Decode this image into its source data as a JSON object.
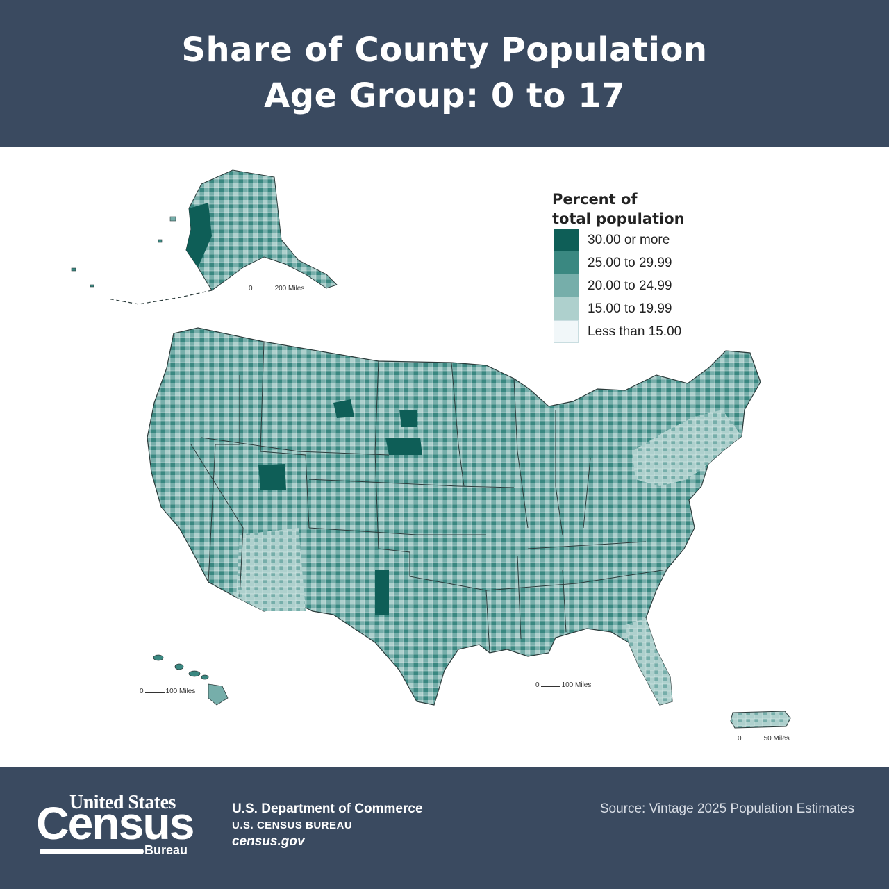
{
  "header": {
    "title_line1": "Share of County Population",
    "title_line2": "Age Group: 0 to 17"
  },
  "legend": {
    "title_line1": "Percent of",
    "title_line2": "total population",
    "items": [
      {
        "label": "30.00 or more",
        "color": "#0e5e57"
      },
      {
        "label": "25.00 to 29.99",
        "color": "#3a8881"
      },
      {
        "label": "20.00 to 24.99",
        "color": "#76aeaa"
      },
      {
        "label": "15.00 to 19.99",
        "color": "#aed0cd"
      },
      {
        "label": "Less than 15.00",
        "color": "#f1f7f9"
      }
    ]
  },
  "scales": {
    "alaska": {
      "zero": "0",
      "label": "200 Miles"
    },
    "conus": {
      "zero": "0",
      "label": "100 Miles"
    },
    "hawaii": {
      "zero": "0",
      "label": "100 Miles"
    },
    "puerto_rico": {
      "zero": "0",
      "label": "50 Miles"
    }
  },
  "footer": {
    "logo_line1": "United States",
    "logo_line2": "Census",
    "logo_line3": "Bureau",
    "dept": "U.S. Department of Commerce",
    "bureau": "U.S. CENSUS BUREAU",
    "site": "census.gov",
    "source": "Source: Vintage 2025 Population Estimates"
  }
}
